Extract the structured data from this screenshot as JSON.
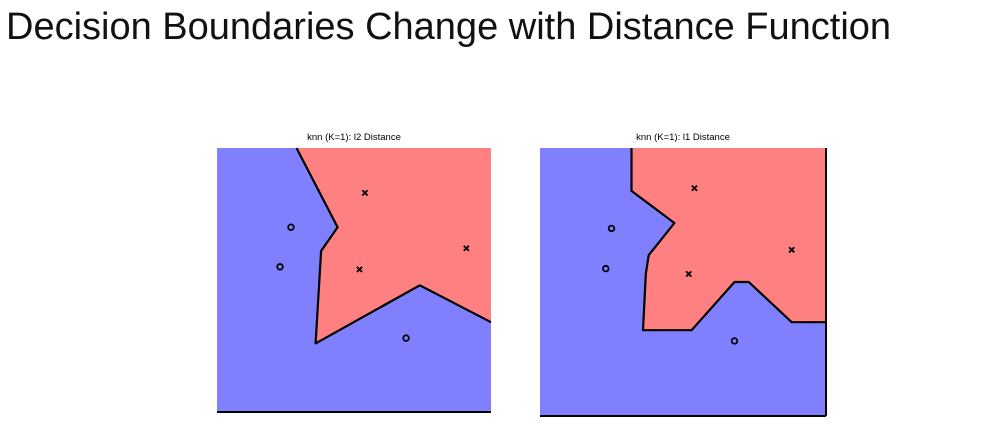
{
  "slide": {
    "title": "Decision Boundaries Change with Distance Function"
  },
  "colors": {
    "class_o": "#8080ff",
    "class_x": "#ff8080",
    "boundary": "#000000"
  },
  "chart_data": [
    {
      "type": "scatter",
      "title": "knn (K=1): l2 Distance",
      "xlim": [
        0,
        1
      ],
      "ylim": [
        0,
        1
      ],
      "grid": false,
      "series": [
        {
          "marker": "o",
          "points": [
            [
              0.27,
              0.7
            ],
            [
              0.23,
              0.55
            ],
            [
              0.69,
              0.28
            ]
          ]
        },
        {
          "marker": "x",
          "points": [
            [
              0.54,
              0.83
            ],
            [
              0.52,
              0.54
            ],
            [
              0.91,
              0.62
            ]
          ]
        }
      ],
      "regions": [
        {
          "class": "x",
          "polygon": [
            [
              0.29,
              1.0
            ],
            [
              1.0,
              1.0
            ],
            [
              1.0,
              0.34
            ],
            [
              0.74,
              0.48
            ],
            [
              0.36,
              0.26
            ],
            [
              0.38,
              0.61
            ],
            [
              0.44,
              0.7
            ]
          ]
        }
      ],
      "boundary": [
        [
          0.29,
          1.0
        ],
        [
          0.44,
          0.7
        ],
        [
          0.38,
          0.61
        ],
        [
          0.36,
          0.26
        ],
        [
          0.74,
          0.48
        ],
        [
          1.0,
          0.34
        ]
      ]
    },
    {
      "type": "scatter",
      "title": "knn (K=1): l1 Distance",
      "xlim": [
        0,
        1
      ],
      "ylim": [
        0,
        1
      ],
      "grid": false,
      "series": [
        {
          "marker": "o",
          "points": [
            [
              0.25,
              0.7
            ],
            [
              0.23,
              0.55
            ],
            [
              0.68,
              0.28
            ]
          ]
        },
        {
          "marker": "x",
          "points": [
            [
              0.54,
              0.85
            ],
            [
              0.52,
              0.53
            ],
            [
              0.88,
              0.62
            ]
          ]
        }
      ],
      "regions": [
        {
          "class": "x",
          "polygon": [
            [
              0.32,
              1.0
            ],
            [
              1.0,
              1.0
            ],
            [
              1.0,
              0.35
            ],
            [
              0.88,
              0.35
            ],
            [
              0.73,
              0.5
            ],
            [
              0.68,
              0.5
            ],
            [
              0.53,
              0.32
            ],
            [
              0.36,
              0.32
            ],
            [
              0.37,
              0.53
            ],
            [
              0.38,
              0.6
            ],
            [
              0.47,
              0.72
            ],
            [
              0.32,
              0.84
            ]
          ]
        }
      ],
      "boundary": [
        [
          0.32,
          1.0
        ],
        [
          0.32,
          0.84
        ],
        [
          0.47,
          0.72
        ],
        [
          0.38,
          0.6
        ],
        [
          0.37,
          0.53
        ],
        [
          0.36,
          0.32
        ],
        [
          0.53,
          0.32
        ],
        [
          0.68,
          0.5
        ],
        [
          0.73,
          0.5
        ],
        [
          0.88,
          0.35
        ],
        [
          1.0,
          0.35
        ]
      ]
    }
  ]
}
